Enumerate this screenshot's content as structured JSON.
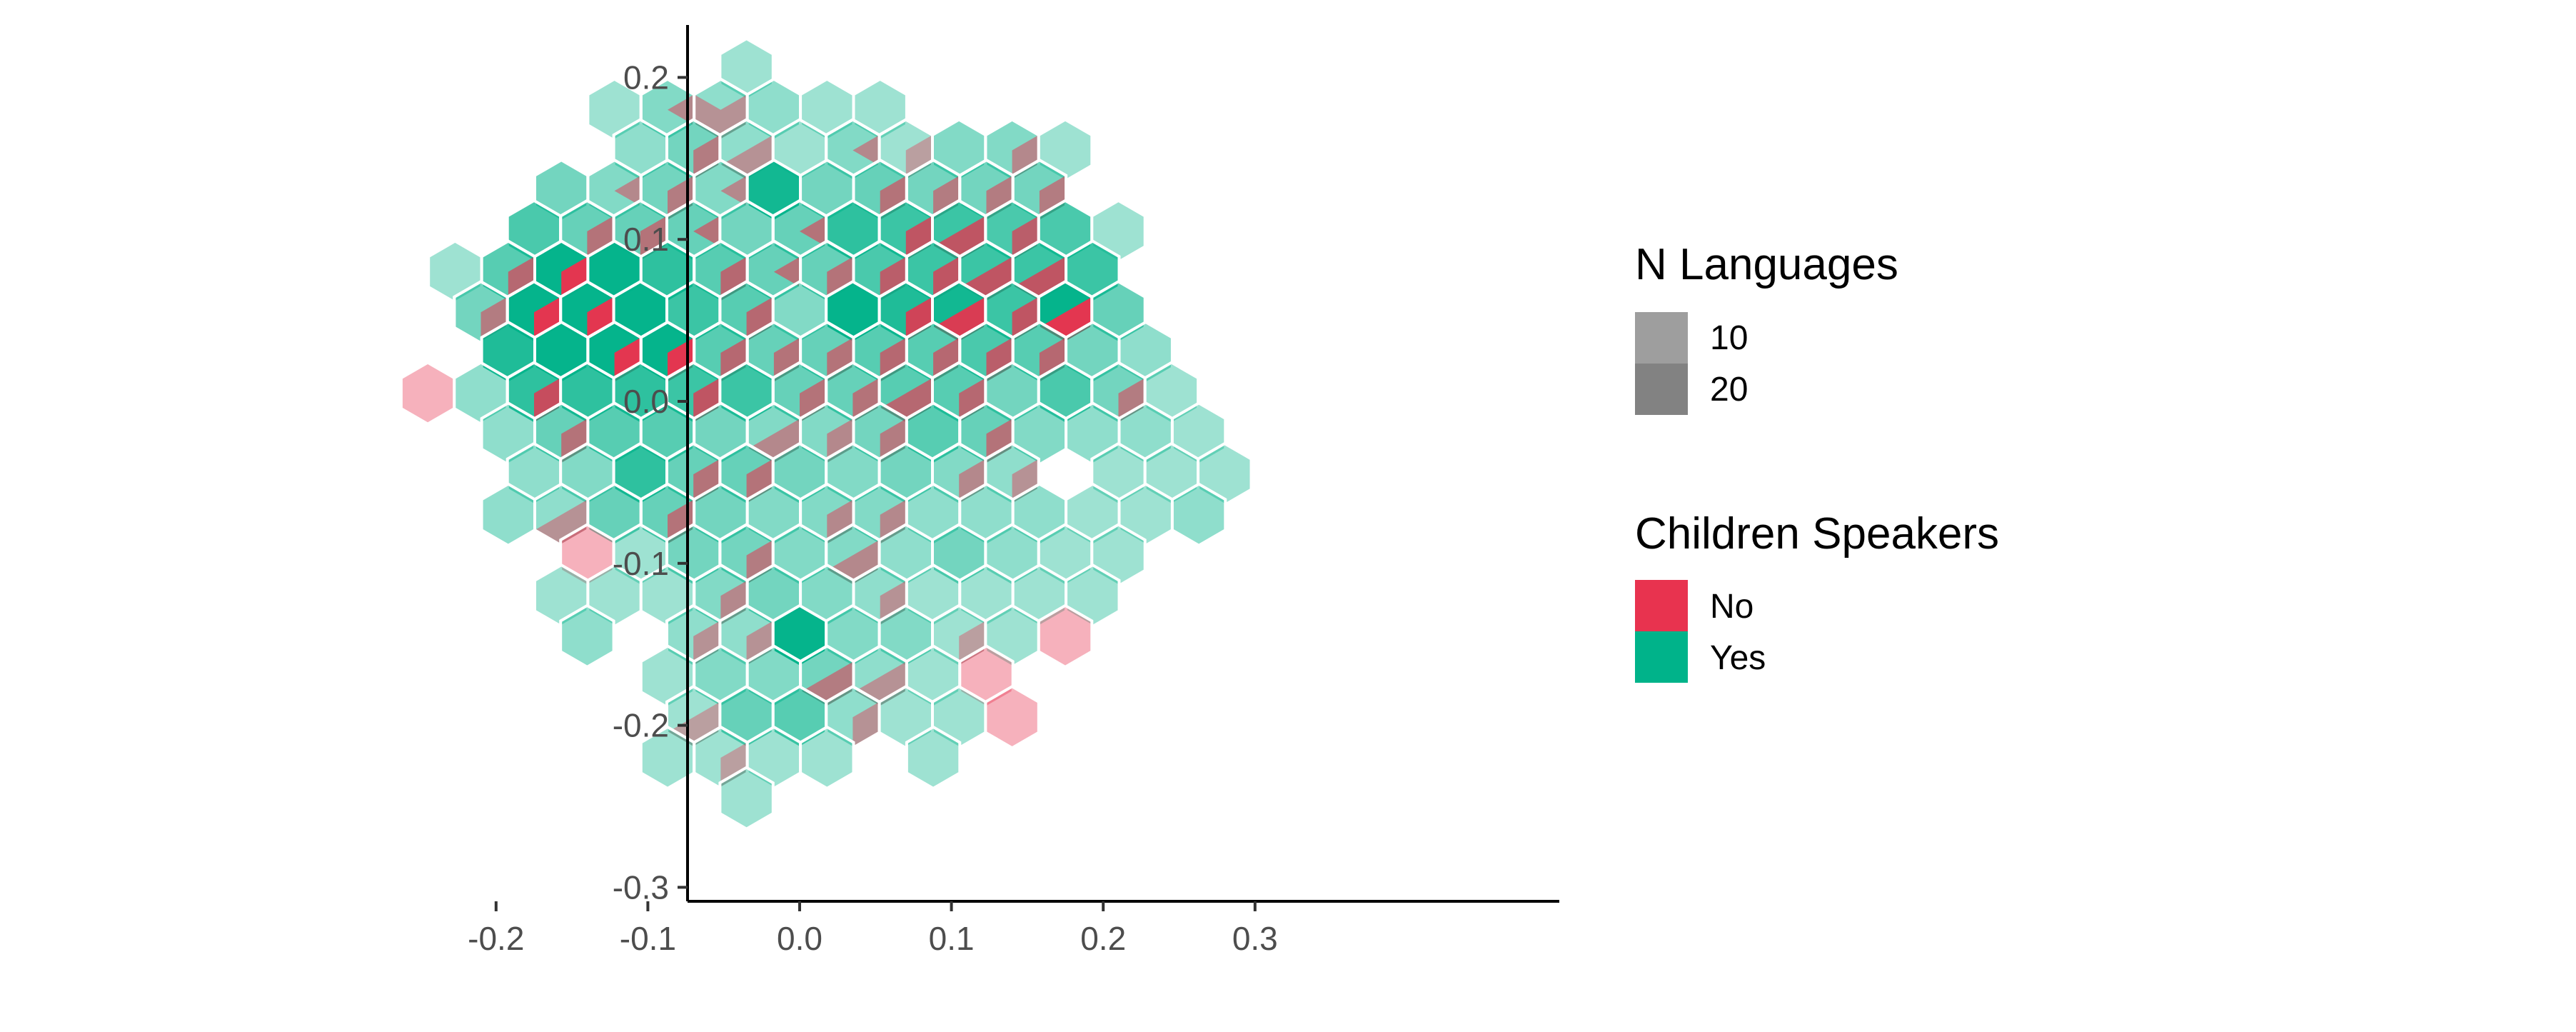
{
  "chart_data": {
    "type": "hexbin",
    "title": "",
    "xlabel": "",
    "ylabel": "",
    "xlim": [
      -0.275,
      0.305
    ],
    "ylim": [
      -0.31,
      0.235
    ],
    "x_ticks": [
      -0.2,
      -0.1,
      0.0,
      0.1,
      0.2,
      0.3
    ],
    "x_tick_labels": [
      "-0.2",
      "-0.1",
      "0.0",
      "0.1",
      "0.2",
      "0.3"
    ],
    "y_ticks": [
      0.2,
      0.1,
      0.0,
      -0.1,
      -0.2,
      -0.3
    ],
    "y_tick_labels": [
      "0.2",
      "0.1",
      "0.0",
      "-0.1",
      "-0.2",
      "-0.3"
    ],
    "grid": false,
    "hex_width": 0.035,
    "fill_series": [
      {
        "name": "No",
        "color": "#E8334F"
      },
      {
        "name": "Yes",
        "color": "#00B38A"
      }
    ],
    "alpha_legend": {
      "title": "N Languages",
      "levels": [
        {
          "label": "10",
          "color": "#9E9E9E"
        },
        {
          "label": "20",
          "color": "#828282"
        }
      ]
    },
    "fill_legend": {
      "title": "Children Speakers",
      "entries": [
        {
          "label": "No",
          "color": "#E8334F"
        },
        {
          "label": "Yes",
          "color": "#00B38A"
        }
      ]
    },
    "legend_position": "right",
    "cells": [
      {
        "x": -0.035,
        "y": 0.205,
        "n": 4,
        "no": 0.0
      },
      {
        "x": -0.122,
        "y": 0.18,
        "n": 4,
        "no": 0.0
      },
      {
        "x": -0.087,
        "y": 0.18,
        "n": 6,
        "no": 0.2
      },
      {
        "x": -0.052,
        "y": 0.18,
        "n": 5,
        "no": 0.6
      },
      {
        "x": -0.017,
        "y": 0.18,
        "n": 5,
        "no": 0.0
      },
      {
        "x": 0.018,
        "y": 0.18,
        "n": 4,
        "no": 0.0
      },
      {
        "x": 0.053,
        "y": 0.18,
        "n": 4,
        "no": 0.0
      },
      {
        "x": -0.105,
        "y": 0.155,
        "n": 5,
        "no": 0.0
      },
      {
        "x": -0.07,
        "y": 0.155,
        "n": 7,
        "no": 0.3
      },
      {
        "x": -0.035,
        "y": 0.155,
        "n": 5,
        "no": 0.5
      },
      {
        "x": 0.0,
        "y": 0.155,
        "n": 4,
        "no": 0.0
      },
      {
        "x": 0.035,
        "y": 0.155,
        "n": 6,
        "no": 0.2
      },
      {
        "x": 0.07,
        "y": 0.155,
        "n": 4,
        "no": 0.3
      },
      {
        "x": 0.105,
        "y": 0.155,
        "n": 6,
        "no": 0.0
      },
      {
        "x": 0.14,
        "y": 0.155,
        "n": 6,
        "no": 0.4
      },
      {
        "x": 0.175,
        "y": 0.155,
        "n": 4,
        "no": 0.0
      },
      {
        "x": -0.157,
        "y": 0.13,
        "n": 7,
        "no": 0.0
      },
      {
        "x": -0.122,
        "y": 0.13,
        "n": 6,
        "no": 0.2
      },
      {
        "x": -0.087,
        "y": 0.13,
        "n": 7,
        "no": 0.3
      },
      {
        "x": -0.052,
        "y": 0.13,
        "n": 6,
        "no": 0.2
      },
      {
        "x": -0.017,
        "y": 0.13,
        "n": 14,
        "no": 0.0
      },
      {
        "x": 0.018,
        "y": 0.13,
        "n": 7,
        "no": 0.0
      },
      {
        "x": 0.053,
        "y": 0.13,
        "n": 8,
        "no": 0.3
      },
      {
        "x": 0.088,
        "y": 0.13,
        "n": 7,
        "no": 0.4
      },
      {
        "x": 0.123,
        "y": 0.13,
        "n": 7,
        "no": 0.3
      },
      {
        "x": 0.158,
        "y": 0.13,
        "n": 7,
        "no": 0.3
      },
      {
        "x": -0.175,
        "y": 0.105,
        "n": 10,
        "no": 0.0
      },
      {
        "x": -0.14,
        "y": 0.105,
        "n": 8,
        "no": 0.3
      },
      {
        "x": -0.105,
        "y": 0.105,
        "n": 8,
        "no": 0.3
      },
      {
        "x": -0.07,
        "y": 0.105,
        "n": 8,
        "no": 0.2
      },
      {
        "x": -0.035,
        "y": 0.105,
        "n": 7,
        "no": 0.0
      },
      {
        "x": 0.0,
        "y": 0.105,
        "n": 8,
        "no": 0.2
      },
      {
        "x": 0.035,
        "y": 0.105,
        "n": 12,
        "no": 0.0
      },
      {
        "x": 0.07,
        "y": 0.105,
        "n": 11,
        "no": 0.4
      },
      {
        "x": 0.105,
        "y": 0.105,
        "n": 11,
        "no": 0.5
      },
      {
        "x": 0.14,
        "y": 0.105,
        "n": 10,
        "no": 0.4
      },
      {
        "x": 0.175,
        "y": 0.105,
        "n": 10,
        "no": 0.0
      },
      {
        "x": 0.21,
        "y": 0.105,
        "n": 4,
        "no": 0.0
      },
      {
        "x": -0.227,
        "y": 0.08,
        "n": 4,
        "no": 0.0
      },
      {
        "x": -0.192,
        "y": 0.08,
        "n": 9,
        "no": 0.3
      },
      {
        "x": -0.157,
        "y": 0.08,
        "n": 16,
        "no": 0.4
      },
      {
        "x": -0.122,
        "y": 0.08,
        "n": 18,
        "no": 0.0
      },
      {
        "x": -0.087,
        "y": 0.08,
        "n": 12,
        "no": 0.0
      },
      {
        "x": -0.052,
        "y": 0.08,
        "n": 9,
        "no": 0.3
      },
      {
        "x": -0.017,
        "y": 0.08,
        "n": 8,
        "no": 0.2
      },
      {
        "x": 0.018,
        "y": 0.08,
        "n": 8,
        "no": 0.3
      },
      {
        "x": 0.053,
        "y": 0.08,
        "n": 10,
        "no": 0.3
      },
      {
        "x": 0.088,
        "y": 0.08,
        "n": 11,
        "no": 0.3
      },
      {
        "x": 0.123,
        "y": 0.08,
        "n": 11,
        "no": 0.5
      },
      {
        "x": 0.158,
        "y": 0.08,
        "n": 11,
        "no": 0.5
      },
      {
        "x": 0.193,
        "y": 0.08,
        "n": 11,
        "no": 0.0
      },
      {
        "x": -0.21,
        "y": 0.055,
        "n": 7,
        "no": 0.4
      },
      {
        "x": -0.175,
        "y": 0.055,
        "n": 16,
        "no": 0.4
      },
      {
        "x": -0.14,
        "y": 0.055,
        "n": 17,
        "no": 0.3
      },
      {
        "x": -0.105,
        "y": 0.055,
        "n": 18,
        "no": 0.0
      },
      {
        "x": -0.07,
        "y": 0.055,
        "n": 11,
        "no": 0.0
      },
      {
        "x": -0.035,
        "y": 0.055,
        "n": 9,
        "no": 0.3
      },
      {
        "x": 0.0,
        "y": 0.055,
        "n": 6,
        "no": 0.0
      },
      {
        "x": 0.035,
        "y": 0.055,
        "n": 16,
        "no": 0.0
      },
      {
        "x": 0.07,
        "y": 0.055,
        "n": 13,
        "no": 0.4
      },
      {
        "x": 0.105,
        "y": 0.055,
        "n": 14,
        "no": 0.5
      },
      {
        "x": 0.14,
        "y": 0.055,
        "n": 11,
        "no": 0.3
      },
      {
        "x": 0.175,
        "y": 0.055,
        "n": 16,
        "no": 0.5
      },
      {
        "x": 0.21,
        "y": 0.055,
        "n": 8,
        "no": 0.0
      },
      {
        "x": -0.192,
        "y": 0.03,
        "n": 13,
        "no": 0.0
      },
      {
        "x": -0.157,
        "y": 0.03,
        "n": 17,
        "no": 0.0
      },
      {
        "x": -0.122,
        "y": 0.03,
        "n": 16,
        "no": 0.3
      },
      {
        "x": -0.087,
        "y": 0.03,
        "n": 15,
        "no": 0.4
      },
      {
        "x": -0.052,
        "y": 0.03,
        "n": 9,
        "no": 0.3
      },
      {
        "x": -0.017,
        "y": 0.03,
        "n": 8,
        "no": 0.3
      },
      {
        "x": 0.018,
        "y": 0.03,
        "n": 8,
        "no": 0.3
      },
      {
        "x": 0.053,
        "y": 0.03,
        "n": 9,
        "no": 0.4
      },
      {
        "x": 0.088,
        "y": 0.03,
        "n": 9,
        "no": 0.3
      },
      {
        "x": 0.123,
        "y": 0.03,
        "n": 10,
        "no": 0.3
      },
      {
        "x": 0.158,
        "y": 0.03,
        "n": 9,
        "no": 0.3
      },
      {
        "x": 0.193,
        "y": 0.03,
        "n": 7,
        "no": 0.0
      },
      {
        "x": 0.228,
        "y": 0.03,
        "n": 5,
        "no": 0.0
      },
      {
        "x": -0.245,
        "y": 0.005,
        "n": 4,
        "no": 1.0
      },
      {
        "x": -0.21,
        "y": 0.005,
        "n": 5,
        "no": 0.0
      },
      {
        "x": -0.175,
        "y": 0.005,
        "n": 12,
        "no": 0.3
      },
      {
        "x": -0.14,
        "y": 0.005,
        "n": 12,
        "no": 0.0
      },
      {
        "x": -0.105,
        "y": 0.005,
        "n": 12,
        "no": 0.0
      },
      {
        "x": -0.07,
        "y": 0.005,
        "n": 11,
        "no": 0.3
      },
      {
        "x": -0.035,
        "y": 0.005,
        "n": 11,
        "no": 0.0
      },
      {
        "x": 0.0,
        "y": 0.005,
        "n": 8,
        "no": 0.4
      },
      {
        "x": 0.035,
        "y": 0.005,
        "n": 8,
        "no": 0.3
      },
      {
        "x": 0.07,
        "y": 0.005,
        "n": 9,
        "no": 0.5
      },
      {
        "x": 0.105,
        "y": 0.005,
        "n": 9,
        "no": 0.4
      },
      {
        "x": 0.14,
        "y": 0.005,
        "n": 7,
        "no": 0.0
      },
      {
        "x": 0.175,
        "y": 0.005,
        "n": 10,
        "no": 0.0
      },
      {
        "x": 0.21,
        "y": 0.005,
        "n": 7,
        "no": 0.3
      },
      {
        "x": 0.245,
        "y": 0.005,
        "n": 4,
        "no": 0.0
      },
      {
        "x": -0.192,
        "y": -0.02,
        "n": 5,
        "no": 0.0
      },
      {
        "x": -0.157,
        "y": -0.02,
        "n": 8,
        "no": 0.3
      },
      {
        "x": -0.122,
        "y": -0.02,
        "n": 9,
        "no": 0.0
      },
      {
        "x": -0.087,
        "y": -0.02,
        "n": 9,
        "no": 0.0
      },
      {
        "x": -0.052,
        "y": -0.02,
        "n": 7,
        "no": 0.0
      },
      {
        "x": -0.017,
        "y": -0.02,
        "n": 6,
        "no": 0.5
      },
      {
        "x": 0.018,
        "y": -0.02,
        "n": 6,
        "no": 0.4
      },
      {
        "x": 0.053,
        "y": -0.02,
        "n": 7,
        "no": 0.3
      },
      {
        "x": 0.088,
        "y": -0.02,
        "n": 9,
        "no": 0.0
      },
      {
        "x": 0.123,
        "y": -0.02,
        "n": 8,
        "no": 0.4
      },
      {
        "x": 0.158,
        "y": -0.02,
        "n": 6,
        "no": 0.0
      },
      {
        "x": 0.193,
        "y": -0.02,
        "n": 5,
        "no": 0.0
      },
      {
        "x": 0.228,
        "y": -0.02,
        "n": 5,
        "no": 0.0
      },
      {
        "x": 0.263,
        "y": -0.02,
        "n": 4,
        "no": 0.0
      },
      {
        "x": -0.175,
        "y": -0.045,
        "n": 5,
        "no": 0.0
      },
      {
        "x": -0.14,
        "y": -0.045,
        "n": 6,
        "no": 0.0
      },
      {
        "x": -0.105,
        "y": -0.045,
        "n": 12,
        "no": 0.0
      },
      {
        "x": -0.07,
        "y": -0.045,
        "n": 8,
        "no": 0.4
      },
      {
        "x": -0.035,
        "y": -0.045,
        "n": 8,
        "no": 0.4
      },
      {
        "x": 0.0,
        "y": -0.045,
        "n": 7,
        "no": 0.0
      },
      {
        "x": 0.035,
        "y": -0.045,
        "n": 6,
        "no": 0.0
      },
      {
        "x": 0.07,
        "y": -0.045,
        "n": 7,
        "no": 0.0
      },
      {
        "x": 0.105,
        "y": -0.045,
        "n": 6,
        "no": 0.4
      },
      {
        "x": 0.14,
        "y": -0.045,
        "n": 5,
        "no": 0.3
      },
      {
        "x": 0.21,
        "y": -0.045,
        "n": 4,
        "no": 0.0
      },
      {
        "x": 0.245,
        "y": -0.045,
        "n": 4,
        "no": 0.0
      },
      {
        "x": 0.28,
        "y": -0.045,
        "n": 4,
        "no": 0.0
      },
      {
        "x": -0.192,
        "y": -0.07,
        "n": 5,
        "no": 0.0
      },
      {
        "x": -0.157,
        "y": -0.07,
        "n": 5,
        "no": 0.5
      },
      {
        "x": -0.122,
        "y": -0.07,
        "n": 8,
        "no": 0.0
      },
      {
        "x": -0.087,
        "y": -0.07,
        "n": 8,
        "no": 0.4
      },
      {
        "x": -0.052,
        "y": -0.07,
        "n": 7,
        "no": 0.0
      },
      {
        "x": -0.017,
        "y": -0.07,
        "n": 6,
        "no": 0.0
      },
      {
        "x": 0.018,
        "y": -0.07,
        "n": 6,
        "no": 0.3
      },
      {
        "x": 0.053,
        "y": -0.07,
        "n": 6,
        "no": 0.4
      },
      {
        "x": 0.088,
        "y": -0.07,
        "n": 5,
        "no": 0.0
      },
      {
        "x": 0.123,
        "y": -0.07,
        "n": 5,
        "no": 0.0
      },
      {
        "x": 0.158,
        "y": -0.07,
        "n": 5,
        "no": 0.0
      },
      {
        "x": 0.193,
        "y": -0.07,
        "n": 4,
        "no": 0.0
      },
      {
        "x": 0.228,
        "y": -0.07,
        "n": 4,
        "no": 0.0
      },
      {
        "x": 0.263,
        "y": -0.07,
        "n": 5,
        "no": 0.0
      },
      {
        "x": -0.14,
        "y": -0.095,
        "n": 4,
        "no": 1.0
      },
      {
        "x": -0.105,
        "y": -0.095,
        "n": 4,
        "no": 0.0
      },
      {
        "x": -0.07,
        "y": -0.095,
        "n": 7,
        "no": 0.0
      },
      {
        "x": -0.035,
        "y": -0.095,
        "n": 7,
        "no": 0.3
      },
      {
        "x": 0.0,
        "y": -0.095,
        "n": 6,
        "no": 0.0
      },
      {
        "x": 0.035,
        "y": -0.095,
        "n": 6,
        "no": 0.5
      },
      {
        "x": 0.07,
        "y": -0.095,
        "n": 5,
        "no": 0.0
      },
      {
        "x": 0.105,
        "y": -0.095,
        "n": 7,
        "no": 0.0
      },
      {
        "x": 0.14,
        "y": -0.095,
        "n": 5,
        "no": 0.0
      },
      {
        "x": 0.175,
        "y": -0.095,
        "n": 4,
        "no": 0.0
      },
      {
        "x": 0.21,
        "y": -0.095,
        "n": 4,
        "no": 0.0
      },
      {
        "x": -0.157,
        "y": -0.12,
        "n": 4,
        "no": 0.0
      },
      {
        "x": -0.122,
        "y": -0.12,
        "n": 4,
        "no": 0.0
      },
      {
        "x": -0.087,
        "y": -0.12,
        "n": 4,
        "no": 0.0
      },
      {
        "x": -0.052,
        "y": -0.12,
        "n": 6,
        "no": 0.4
      },
      {
        "x": -0.017,
        "y": -0.12,
        "n": 7,
        "no": 0.0
      },
      {
        "x": 0.018,
        "y": -0.12,
        "n": 6,
        "no": 0.0
      },
      {
        "x": 0.053,
        "y": -0.12,
        "n": 5,
        "no": 0.4
      },
      {
        "x": 0.088,
        "y": -0.12,
        "n": 4,
        "no": 0.0
      },
      {
        "x": 0.123,
        "y": -0.12,
        "n": 4,
        "no": 0.0
      },
      {
        "x": 0.158,
        "y": -0.12,
        "n": 4,
        "no": 0.0
      },
      {
        "x": 0.193,
        "y": -0.12,
        "n": 4,
        "no": 0.0
      },
      {
        "x": -0.14,
        "y": -0.145,
        "n": 5,
        "no": 0.0
      },
      {
        "x": -0.07,
        "y": -0.145,
        "n": 5,
        "no": 0.4
      },
      {
        "x": -0.035,
        "y": -0.145,
        "n": 5,
        "no": 0.4
      },
      {
        "x": 0.0,
        "y": -0.145,
        "n": 18,
        "no": 0.0
      },
      {
        "x": 0.035,
        "y": -0.145,
        "n": 6,
        "no": 0.0
      },
      {
        "x": 0.07,
        "y": -0.145,
        "n": 6,
        "no": 0.0
      },
      {
        "x": 0.105,
        "y": -0.145,
        "n": 4,
        "no": 0.4
      },
      {
        "x": 0.14,
        "y": -0.145,
        "n": 4,
        "no": 0.0
      },
      {
        "x": 0.175,
        "y": -0.145,
        "n": 4,
        "no": 1.0
      },
      {
        "x": -0.087,
        "y": -0.17,
        "n": 4,
        "no": 0.0
      },
      {
        "x": -0.052,
        "y": -0.17,
        "n": 6,
        "no": 0.0
      },
      {
        "x": -0.017,
        "y": -0.17,
        "n": 6,
        "no": 0.0
      },
      {
        "x": 0.018,
        "y": -0.17,
        "n": 7,
        "no": 0.5
      },
      {
        "x": 0.053,
        "y": -0.17,
        "n": 5,
        "no": 0.5
      },
      {
        "x": 0.088,
        "y": -0.17,
        "n": 4,
        "no": 0.0
      },
      {
        "x": 0.123,
        "y": -0.17,
        "n": 4,
        "no": 1.0
      },
      {
        "x": -0.07,
        "y": -0.195,
        "n": 4,
        "no": 0.5
      },
      {
        "x": -0.035,
        "y": -0.195,
        "n": 8,
        "no": 0.0
      },
      {
        "x": 0.0,
        "y": -0.195,
        "n": 9,
        "no": 0.0
      },
      {
        "x": 0.035,
        "y": -0.195,
        "n": 5,
        "no": 0.4
      },
      {
        "x": 0.07,
        "y": -0.195,
        "n": 4,
        "no": 0.0
      },
      {
        "x": 0.105,
        "y": -0.195,
        "n": 4,
        "no": 0.0
      },
      {
        "x": 0.14,
        "y": -0.195,
        "n": 4,
        "no": 1.0
      },
      {
        "x": -0.087,
        "y": -0.22,
        "n": 4,
        "no": 0.0
      },
      {
        "x": -0.052,
        "y": -0.22,
        "n": 4,
        "no": 0.4
      },
      {
        "x": -0.017,
        "y": -0.22,
        "n": 4,
        "no": 0.0
      },
      {
        "x": 0.018,
        "y": -0.22,
        "n": 4,
        "no": 0.0
      },
      {
        "x": 0.088,
        "y": -0.22,
        "n": 4,
        "no": 0.0
      },
      {
        "x": -0.035,
        "y": -0.245,
        "n": 4,
        "no": 0.0
      }
    ]
  }
}
